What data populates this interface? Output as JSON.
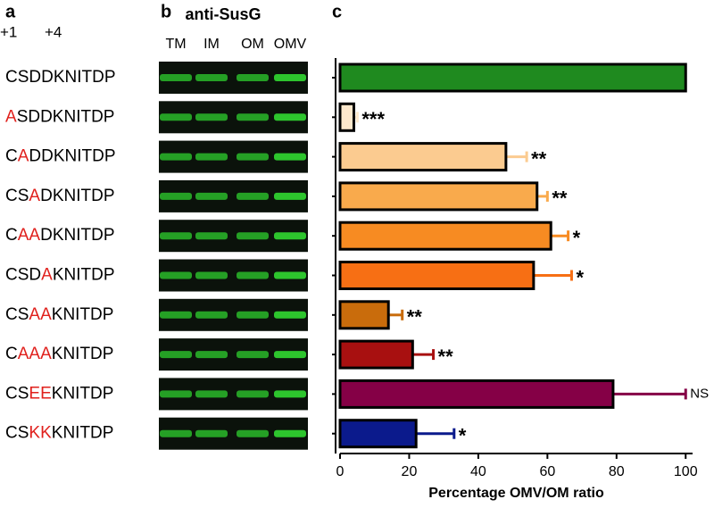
{
  "panels": {
    "a": "a",
    "b": "b",
    "c": "c"
  },
  "positions": [
    "+1",
    "+4"
  ],
  "sequences": [
    {
      "parts": [
        {
          "text": "CSDDKNITDP",
          "color": "#000000"
        }
      ]
    },
    {
      "parts": [
        {
          "text": "A",
          "color": "#e0201c"
        },
        {
          "text": "SDDKNITDP",
          "color": "#000000"
        }
      ]
    },
    {
      "parts": [
        {
          "text": "C",
          "color": "#000000"
        },
        {
          "text": "A",
          "color": "#e0201c"
        },
        {
          "text": "DDKNITDP",
          "color": "#000000"
        }
      ]
    },
    {
      "parts": [
        {
          "text": "CS",
          "color": "#000000"
        },
        {
          "text": "A",
          "color": "#e0201c"
        },
        {
          "text": "DKNITDP",
          "color": "#000000"
        }
      ]
    },
    {
      "parts": [
        {
          "text": "C",
          "color": "#000000"
        },
        {
          "text": "AA",
          "color": "#e0201c"
        },
        {
          "text": "DKNITDP",
          "color": "#000000"
        }
      ]
    },
    {
      "parts": [
        {
          "text": "CSD",
          "color": "#000000"
        },
        {
          "text": "A",
          "color": "#e0201c"
        },
        {
          "text": "KNITDP",
          "color": "#000000"
        }
      ]
    },
    {
      "parts": [
        {
          "text": "CS",
          "color": "#000000"
        },
        {
          "text": "AA",
          "color": "#e0201c"
        },
        {
          "text": "KNITDP",
          "color": "#000000"
        }
      ]
    },
    {
      "parts": [
        {
          "text": "C",
          "color": "#000000"
        },
        {
          "text": "AAA",
          "color": "#e0201c"
        },
        {
          "text": "KNITDP",
          "color": "#000000"
        }
      ]
    },
    {
      "parts": [
        {
          "text": "CS",
          "color": "#000000"
        },
        {
          "text": "EE",
          "color": "#e0201c"
        },
        {
          "text": "KNITDP",
          "color": "#000000"
        }
      ]
    },
    {
      "parts": [
        {
          "text": "CS",
          "color": "#000000"
        },
        {
          "text": "KK",
          "color": "#e0201c"
        },
        {
          "text": "KNITDP",
          "color": "#000000"
        }
      ]
    }
  ],
  "blot": {
    "title": "anti-SusG",
    "lanes": [
      "TM",
      "IM",
      "OM",
      "OMV"
    ]
  },
  "chart_data": {
    "type": "bar",
    "orientation": "horizontal",
    "xlabel": "Percentage OMV/OM ratio",
    "values": [
      100,
      4,
      48,
      57,
      61,
      56,
      14,
      21,
      79,
      22
    ],
    "errors": [
      null,
      1,
      6,
      3,
      5,
      11,
      4,
      6,
      21,
      11
    ],
    "colors": [
      "#1f8a1f",
      "#fde8cc",
      "#fbcb90",
      "#f9aa4c",
      "#f78b22",
      "#f76f14",
      "#c96c0c",
      "#a81010",
      "#850046",
      "#0b1a8c"
    ],
    "significance": [
      null,
      "***",
      "**",
      "**",
      "*",
      "*",
      "**",
      "**",
      "NS",
      "*"
    ],
    "xlim": [
      0,
      102
    ],
    "xticks": [
      0,
      20,
      40,
      60,
      80,
      100
    ]
  }
}
